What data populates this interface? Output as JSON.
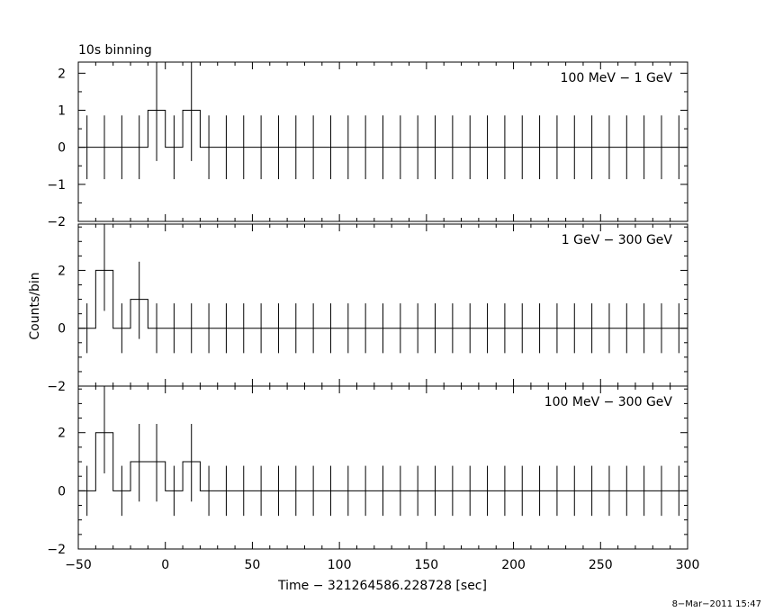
{
  "chart_data": {
    "type": "line",
    "title": "10s binning",
    "xlabel": "Time − 321264586.228728 [sec]",
    "ylabel": "Counts/bin",
    "footer": "8−Mar−2011 15:47",
    "xlim": [
      -50,
      300
    ],
    "x_ticks": [
      -50,
      0,
      50,
      100,
      150,
      200,
      250,
      300
    ],
    "x_tick_labels": [
      "−50",
      "0",
      "50",
      "100",
      "150",
      "200",
      "250",
      "300"
    ],
    "bin_width": 10,
    "x": [
      -45,
      -35,
      -25,
      -15,
      -5,
      5,
      15,
      25,
      35,
      45,
      55,
      65,
      75,
      85,
      95,
      105,
      115,
      125,
      135,
      145,
      155,
      165,
      175,
      185,
      195,
      205,
      215,
      225,
      235,
      245,
      255,
      265,
      275,
      285,
      295
    ],
    "panels": [
      {
        "name": "100 MeV − 1 GeV",
        "ylim": [
          -2,
          2.3
        ],
        "y_ticks": [
          -2,
          -1,
          0,
          1,
          2
        ],
        "y_tick_labels": [
          "−2",
          "−1",
          "0",
          "1",
          "2"
        ],
        "values": [
          0,
          0,
          0,
          0,
          1,
          0,
          1,
          0,
          0,
          0,
          0,
          0,
          0,
          0,
          0,
          0,
          0,
          0,
          0,
          0,
          0,
          0,
          0,
          0,
          0,
          0,
          0,
          0,
          0,
          0,
          0,
          0,
          0,
          0,
          0
        ],
        "err_up": [
          0.86,
          0.86,
          0.86,
          0.86,
          2.3,
          0.86,
          2.3,
          0.86,
          0.86,
          0.86,
          0.86,
          0.86,
          0.86,
          0.86,
          0.86,
          0.86,
          0.86,
          0.86,
          0.86,
          0.86,
          0.86,
          0.86,
          0.86,
          0.86,
          0.86,
          0.86,
          0.86,
          0.86,
          0.86,
          0.86,
          0.86,
          0.86,
          0.86,
          0.86,
          0.86
        ],
        "err_down": [
          -0.86,
          -0.86,
          -0.86,
          -0.86,
          -0.37,
          -0.86,
          -0.37,
          -0.86,
          -0.86,
          -0.86,
          -0.86,
          -0.86,
          -0.86,
          -0.86,
          -0.86,
          -0.86,
          -0.86,
          -0.86,
          -0.86,
          -0.86,
          -0.86,
          -0.86,
          -0.86,
          -0.86,
          -0.86,
          -0.86,
          -0.86,
          -0.86,
          -0.86,
          -0.86,
          -0.86,
          -0.86,
          -0.86,
          -0.86,
          -0.86
        ]
      },
      {
        "name": "1 GeV − 300 GeV",
        "ylim": [
          -2,
          3.6
        ],
        "y_ticks": [
          -2,
          0,
          2
        ],
        "y_tick_labels": [
          "−2",
          "0",
          "2"
        ],
        "values": [
          0,
          2,
          0,
          1,
          0,
          0,
          0,
          0,
          0,
          0,
          0,
          0,
          0,
          0,
          0,
          0,
          0,
          0,
          0,
          0,
          0,
          0,
          0,
          0,
          0,
          0,
          0,
          0,
          0,
          0,
          0,
          0,
          0,
          0,
          0
        ],
        "err_up": [
          0.86,
          3.6,
          0.86,
          2.3,
          0.86,
          0.86,
          0.86,
          0.86,
          0.86,
          0.86,
          0.86,
          0.86,
          0.86,
          0.86,
          0.86,
          0.86,
          0.86,
          0.86,
          0.86,
          0.86,
          0.86,
          0.86,
          0.86,
          0.86,
          0.86,
          0.86,
          0.86,
          0.86,
          0.86,
          0.86,
          0.86,
          0.86,
          0.86,
          0.86,
          0.86
        ],
        "err_down": [
          -0.86,
          0.6,
          -0.86,
          -0.37,
          -0.86,
          -0.86,
          -0.86,
          -0.86,
          -0.86,
          -0.86,
          -0.86,
          -0.86,
          -0.86,
          -0.86,
          -0.86,
          -0.86,
          -0.86,
          -0.86,
          -0.86,
          -0.86,
          -0.86,
          -0.86,
          -0.86,
          -0.86,
          -0.86,
          -0.86,
          -0.86,
          -0.86,
          -0.86,
          -0.86,
          -0.86,
          -0.86,
          -0.86,
          -0.86,
          -0.86
        ]
      },
      {
        "name": "100 MeV − 300 GeV",
        "ylim": [
          -2,
          3.6
        ],
        "y_ticks": [
          -2,
          0,
          2
        ],
        "y_tick_labels": [
          "−2",
          "0",
          "2"
        ],
        "values": [
          0,
          2,
          0,
          1,
          1,
          0,
          1,
          0,
          0,
          0,
          0,
          0,
          0,
          0,
          0,
          0,
          0,
          0,
          0,
          0,
          0,
          0,
          0,
          0,
          0,
          0,
          0,
          0,
          0,
          0,
          0,
          0,
          0,
          0,
          0
        ],
        "err_up": [
          0.86,
          3.6,
          0.86,
          2.3,
          2.3,
          0.86,
          2.3,
          0.86,
          0.86,
          0.86,
          0.86,
          0.86,
          0.86,
          0.86,
          0.86,
          0.86,
          0.86,
          0.86,
          0.86,
          0.86,
          0.86,
          0.86,
          0.86,
          0.86,
          0.86,
          0.86,
          0.86,
          0.86,
          0.86,
          0.86,
          0.86,
          0.86,
          0.86,
          0.86,
          0.86
        ],
        "err_down": [
          -0.86,
          0.6,
          -0.86,
          -0.37,
          -0.37,
          -0.86,
          -0.37,
          -0.86,
          -0.86,
          -0.86,
          -0.86,
          -0.86,
          -0.86,
          -0.86,
          -0.86,
          -0.86,
          -0.86,
          -0.86,
          -0.86,
          -0.86,
          -0.86,
          -0.86,
          -0.86,
          -0.86,
          -0.86,
          -0.86,
          -0.86,
          -0.86,
          -0.86,
          -0.86,
          -0.86,
          -0.86,
          -0.86,
          -0.86,
          -0.86
        ]
      }
    ]
  }
}
